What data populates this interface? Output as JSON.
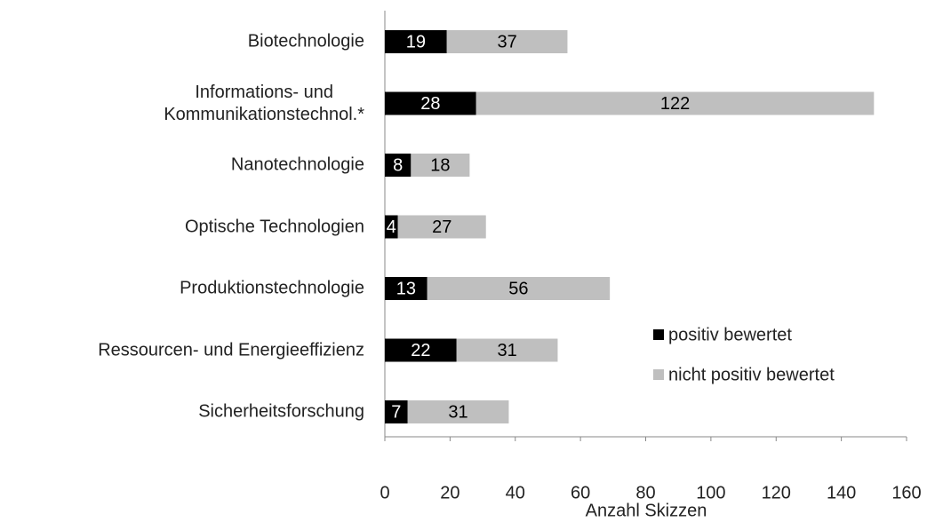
{
  "chart_data": {
    "type": "bar",
    "orientation": "horizontal",
    "stacked": true,
    "categories": [
      "Biotechnologie",
      "Informations- und\nKommunikationstechnol.*",
      "Nanotechnologie",
      "Optische Technologien",
      "Produktionstechnologie",
      "Ressourcen- und Energieeffizienz",
      "Sicherheitsforschung"
    ],
    "series": [
      {
        "name": "positiv bewertet",
        "color": "#000000",
        "label_color": "#ffffff",
        "values": [
          19,
          28,
          8,
          4,
          13,
          22,
          7
        ]
      },
      {
        "name": "nicht positiv bewertet",
        "color": "#bfbfbf",
        "label_color": "#000000",
        "values": [
          37,
          122,
          18,
          27,
          56,
          31,
          31
        ]
      }
    ],
    "xlabel": "Anzahl Skizzen",
    "xlim": [
      0,
      160
    ],
    "xticks": [
      0,
      20,
      40,
      60,
      80,
      100,
      120,
      140,
      160
    ],
    "grid": false,
    "legend": "right"
  }
}
